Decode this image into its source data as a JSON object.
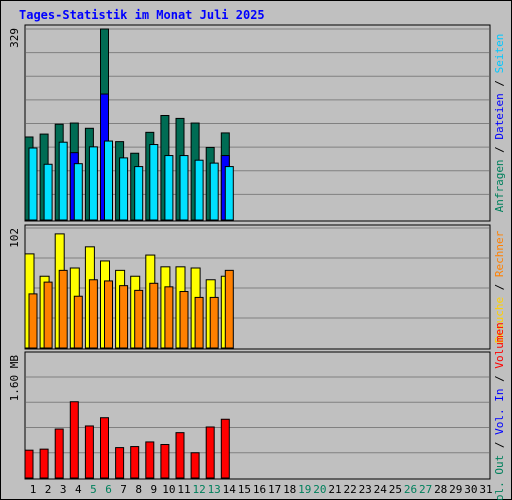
{
  "title": "Tages-Statistik im Monat Juli 2025",
  "chart_data": [
    {
      "type": "bar",
      "tick_label": "329",
      "ylim": [
        0,
        329
      ],
      "x": [
        1,
        2,
        3,
        4,
        5,
        6,
        7,
        8,
        9,
        10,
        11,
        12,
        13,
        14
      ],
      "series": [
        {
          "name": "Anfragen",
          "color": "#006c54",
          "values": [
            143,
            148,
            165,
            167,
            158,
            329,
            135,
            115,
            151,
            180,
            175,
            167,
            125,
            150
          ]
        },
        {
          "name": "Dateien",
          "color": "#0000ff",
          "values": [
            0,
            0,
            0,
            116,
            0,
            217,
            0,
            0,
            0,
            0,
            0,
            0,
            0,
            111
          ]
        },
        {
          "name": "Seiten",
          "color": "#00e0ff",
          "values": [
            124,
            96,
            134,
            97,
            126,
            136,
            107,
            92,
            130,
            111,
            111,
            103,
            98,
            92
          ]
        }
      ]
    },
    {
      "type": "bar",
      "tick_label": "102",
      "ylim": [
        0,
        102
      ],
      "x": [
        1,
        2,
        3,
        4,
        5,
        6,
        7,
        8,
        9,
        10,
        11,
        12,
        13,
        14
      ],
      "series": [
        {
          "name": "Besuche",
          "color": "#ffff00",
          "values": [
            80,
            61,
            97,
            68,
            86,
            74,
            66,
            61,
            79,
            69,
            69,
            68,
            58,
            61
          ]
        },
        {
          "name": "Rechner",
          "color": "#ff8000",
          "values": [
            46,
            56,
            66,
            44,
            58,
            57,
            53,
            49,
            55,
            52,
            48,
            43,
            43,
            66
          ]
        }
      ]
    },
    {
      "type": "bar",
      "tick_label": "1.60 MB",
      "ylim": [
        0,
        1.96
      ],
      "x": [
        1,
        2,
        3,
        4,
        5,
        6,
        7,
        8,
        9,
        10,
        11,
        12,
        13,
        14
      ],
      "series": [
        {
          "name": "Volumen",
          "color": "#ff0000",
          "values": [
            0.54,
            0.56,
            0.95,
            1.48,
            1.01,
            1.17,
            0.59,
            0.61,
            0.7,
            0.65,
            0.88,
            0.49,
            0.99,
            1.14
          ]
        }
      ]
    }
  ],
  "x_labels": [
    "1",
    "2",
    "3",
    "4",
    "5",
    "6",
    "7",
    "8",
    "9",
    "10",
    "11",
    "12",
    "13",
    "14",
    "15",
    "16",
    "17",
    "18",
    "19",
    "20",
    "21",
    "22",
    "23",
    "24",
    "25",
    "26",
    "27",
    "28",
    "29",
    "30",
    "31"
  ],
  "weekend_days": [
    5,
    6,
    12,
    13,
    19,
    20,
    26,
    27
  ],
  "weekday_color": "#000000",
  "weekend_color": "#00805c",
  "right_legend": [
    [
      {
        "text": "Anfragen",
        "color": "#00805c"
      },
      {
        "text": " / ",
        "color": "#000000"
      },
      {
        "text": "Dateien",
        "color": "#0000ff"
      },
      {
        "text": " / ",
        "color": "#000000"
      },
      {
        "text": "Seiten",
        "color": "#00c8ff"
      }
    ],
    [
      {
        "text": "Besuche",
        "color": "#ffd000"
      },
      {
        "text": " / ",
        "color": "#000000"
      },
      {
        "text": "Rechner",
        "color": "#ff8000"
      }
    ],
    [
      {
        "text": "Vol. Out",
        "color": "#00805c"
      },
      {
        "text": " / ",
        "color": "#000000"
      },
      {
        "text": "Vol. In",
        "color": "#0000ff"
      },
      {
        "text": " / ",
        "color": "#000000"
      },
      {
        "text": "Volumen",
        "color": "#ff0000"
      }
    ]
  ]
}
